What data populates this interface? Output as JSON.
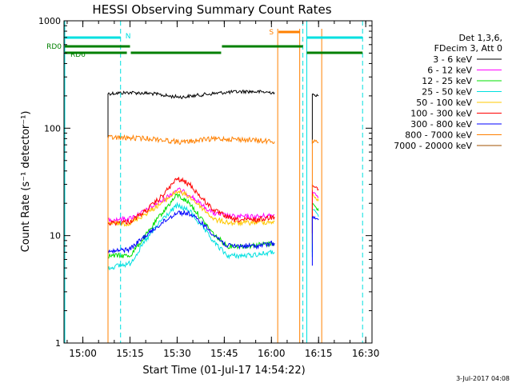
{
  "chart_data": {
    "type": "line",
    "title": "HESSI Observing Summary Count Rates",
    "xlabel": "Start Time (01-Jul-17 14:54:22)",
    "ylabel": "Count Rate (s⁻¹ detector⁻¹)",
    "yscale": "log",
    "ylim": [
      1,
      1000
    ],
    "xlim": [
      "14:54",
      "16:32"
    ],
    "y_ticks": [
      "1",
      "10",
      "100",
      "1000"
    ],
    "x_ticks": [
      "15:00",
      "15:15",
      "15:30",
      "15:45",
      "16:00",
      "16:15",
      "16:30"
    ],
    "legend_header": [
      "Det 1,3,6,",
      "FDecim 3, Att 0"
    ],
    "legend_position": "right",
    "footer_date": "3-Jul-2017 04:08",
    "series": [
      {
        "name": "3 - 6 keV",
        "color": "#000000",
        "points": [
          [
            "15:08",
            210
          ],
          [
            "15:15",
            215
          ],
          [
            "15:22",
            210
          ],
          [
            "15:28",
            198
          ],
          [
            "15:32",
            195
          ],
          [
            "15:38",
            205
          ],
          [
            "15:45",
            215
          ],
          [
            "15:52",
            220
          ],
          [
            "16:01",
            215
          ]
        ],
        "segment2": [
          [
            "16:13",
            205
          ],
          [
            "16:15",
            200
          ]
        ]
      },
      {
        "name": "6 - 12 keV",
        "color": "#ff00ff",
        "points": [
          [
            "15:08",
            14
          ],
          [
            "15:15",
            14.5
          ],
          [
            "15:20",
            17
          ],
          [
            "15:25",
            21
          ],
          [
            "15:30",
            27
          ],
          [
            "15:34",
            24
          ],
          [
            "15:38",
            19
          ],
          [
            "15:42",
            16
          ],
          [
            "15:48",
            15
          ],
          [
            "15:55",
            15
          ],
          [
            "16:01",
            15.5
          ]
        ],
        "segment2": [
          [
            "16:13",
            26
          ],
          [
            "16:15",
            23
          ]
        ]
      },
      {
        "name": "12 - 25 keV",
        "color": "#00e000",
        "points": [
          [
            "15:08",
            6.5
          ],
          [
            "15:15",
            6.5
          ],
          [
            "15:20",
            10
          ],
          [
            "15:25",
            16
          ],
          [
            "15:30",
            24
          ],
          [
            "15:34",
            20
          ],
          [
            "15:38",
            14
          ],
          [
            "15:42",
            10
          ],
          [
            "15:46",
            8
          ],
          [
            "15:52",
            8
          ],
          [
            "16:01",
            8.5
          ]
        ],
        "segment2": [
          [
            "16:13",
            20
          ],
          [
            "16:15",
            17
          ]
        ]
      },
      {
        "name": "25 - 50 keV",
        "color": "#00e0e0",
        "points": [
          [
            "15:08",
            5
          ],
          [
            "15:15",
            5.5
          ],
          [
            "15:20",
            9
          ],
          [
            "15:25",
            14
          ],
          [
            "15:30",
            19
          ],
          [
            "15:34",
            17
          ],
          [
            "15:38",
            12
          ],
          [
            "15:42",
            8.5
          ],
          [
            "15:46",
            6.5
          ],
          [
            "15:52",
            6.5
          ],
          [
            "16:01",
            7
          ]
        ],
        "segment2": [
          [
            "16:13",
            18
          ],
          [
            "16:15",
            15
          ]
        ]
      },
      {
        "name": "50 - 100 keV",
        "color": "#ffc800",
        "points": [
          [
            "15:08",
            13
          ],
          [
            "15:15",
            13
          ],
          [
            "15:20",
            16
          ],
          [
            "15:25",
            20
          ],
          [
            "15:30",
            26
          ],
          [
            "15:34",
            23
          ],
          [
            "15:38",
            18
          ],
          [
            "15:42",
            14
          ],
          [
            "15:48",
            13
          ],
          [
            "16:01",
            13.5
          ]
        ],
        "segment2": [
          [
            "16:13",
            24
          ],
          [
            "16:15",
            21
          ]
        ]
      },
      {
        "name": "100 - 300 keV",
        "color": "#ff0000",
        "points": [
          [
            "15:08",
            13
          ],
          [
            "15:15",
            13.5
          ],
          [
            "15:20",
            17
          ],
          [
            "15:25",
            23
          ],
          [
            "15:30",
            34
          ],
          [
            "15:34",
            30
          ],
          [
            "15:38",
            22
          ],
          [
            "15:42",
            17
          ],
          [
            "15:48",
            14
          ],
          [
            "15:55",
            14
          ],
          [
            "16:01",
            15
          ]
        ],
        "segment2": [
          [
            "16:13",
            30
          ],
          [
            "16:15",
            27
          ]
        ]
      },
      {
        "name": "300 - 800 keV",
        "color": "#0000ff",
        "points": [
          [
            "15:08",
            7
          ],
          [
            "15:15",
            7.5
          ],
          [
            "15:20",
            10
          ],
          [
            "15:25",
            13
          ],
          [
            "15:30",
            16.5
          ],
          [
            "15:34",
            16
          ],
          [
            "15:38",
            13
          ],
          [
            "15:42",
            10
          ],
          [
            "15:46",
            8
          ],
          [
            "15:55",
            8
          ],
          [
            "16:01",
            8.5
          ]
        ],
        "segment2": [
          [
            "16:13",
            15
          ],
          [
            "16:15",
            14
          ]
        ]
      },
      {
        "name": "800 - 7000 keV",
        "color": "#ff8000",
        "points": [
          [
            "15:08",
            82
          ],
          [
            "15:15",
            81
          ],
          [
            "15:22",
            80
          ],
          [
            "15:28",
            76
          ],
          [
            "15:32",
            74
          ],
          [
            "15:38",
            78
          ],
          [
            "15:45",
            80
          ],
          [
            "15:52",
            78
          ],
          [
            "16:01",
            75
          ]
        ],
        "segment2": [
          [
            "16:13",
            76
          ],
          [
            "16:15",
            74
          ]
        ]
      },
      {
        "name": "7000 - 20000 keV",
        "color": "#a05000",
        "points": [],
        "segment2": []
      }
    ],
    "flags": [
      {
        "label": "N",
        "color": "#00e0e0",
        "start": "14:54",
        "end": "15:12",
        "level": "top"
      },
      {
        "label": "",
        "color": "#00e0e0",
        "start": "16:11",
        "end": "16:29",
        "level": "top"
      },
      {
        "label": "S",
        "color": "#ff8000",
        "start": "16:02",
        "end": "16:09",
        "level": "top2"
      },
      {
        "label": "RD0",
        "color": "#008000",
        "start": "14:54",
        "end": "15:15",
        "level": "a"
      },
      {
        "label": "RD6",
        "color": "#008000",
        "start": "14:54",
        "end": "15:14",
        "level": "b"
      },
      {
        "label": "",
        "color": "#008000",
        "start": "15:15",
        "end": "15:44",
        "level": "b"
      },
      {
        "label": "",
        "color": "#008000",
        "start": "15:44",
        "end": "16:10",
        "level": "a"
      },
      {
        "label": "",
        "color": "#008000",
        "start": "16:11",
        "end": "16:29",
        "level": "b"
      }
    ],
    "vlines_dashed": [
      "15:12",
      "16:10",
      "16:29"
    ],
    "vlines_solid_cyan": [
      "14:54",
      "16:11"
    ],
    "vlines_orange": [
      "15:08",
      "16:02",
      "16:09",
      "16:16"
    ]
  }
}
